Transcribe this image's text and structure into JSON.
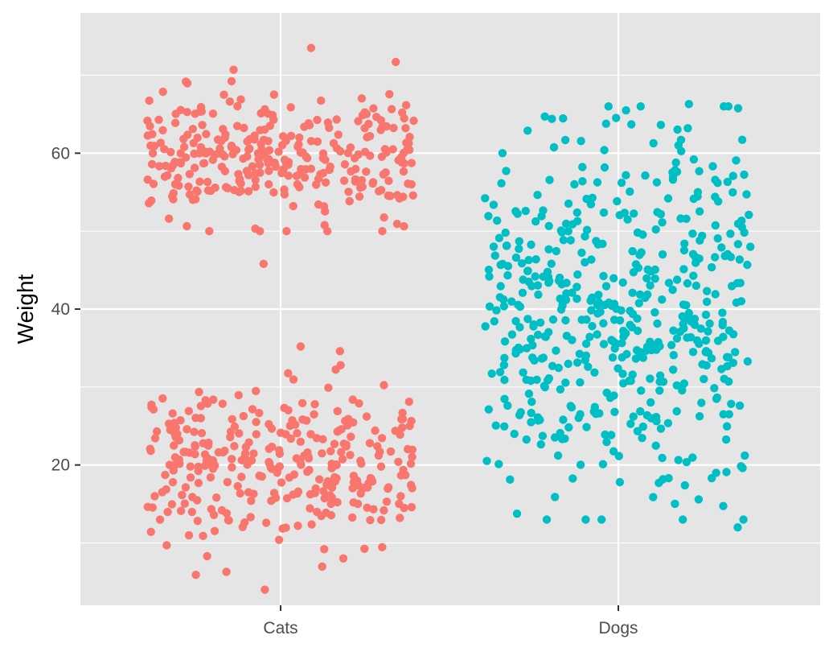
{
  "chart_data": {
    "type": "scatter",
    "title": "",
    "xlabel": "",
    "ylabel": "Weight",
    "categories": [
      "Cats",
      "Dogs"
    ],
    "x_axis": "categorical, jittered points",
    "ylim": [
      2,
      78
    ],
    "y_ticks": [
      20,
      40,
      60
    ],
    "grid": true,
    "legend": "none",
    "theme": {
      "panel_background": "#E5E5E5",
      "grid_color": "#FFFFFF",
      "axis_text_color": "#4D4D4D",
      "axis_title_color": "#000000"
    },
    "series": [
      {
        "category": "Cats",
        "color": "#F8766D",
        "clusters": [
          {
            "y_center": 60,
            "y_range": [
              49,
              73
            ],
            "count": "~300"
          },
          {
            "y_center": 20,
            "y_range": [
              4,
              35
            ],
            "count": "~300"
          }
        ],
        "outliers_y": [
          45.8,
          73.5,
          71.7,
          70.7,
          35.2,
          34.6,
          32.8,
          9.2,
          8.3,
          6.3,
          5.9,
          4.0,
          9.7,
          10.4,
          10.9
        ]
      },
      {
        "category": "Dogs",
        "color": "#00BFC4",
        "clusters": [
          {
            "y_center": 40,
            "y_range": [
              12,
              67
            ],
            "count": "~500"
          }
        ],
        "outliers_y": [
          66.3,
          65.5,
          64.7,
          64.4,
          63.7,
          63.2,
          61.7,
          61.0,
          60.0,
          18.3,
          17.7,
          17.4,
          15.9,
          12.0,
          19.0,
          20.1
        ]
      }
    ]
  }
}
